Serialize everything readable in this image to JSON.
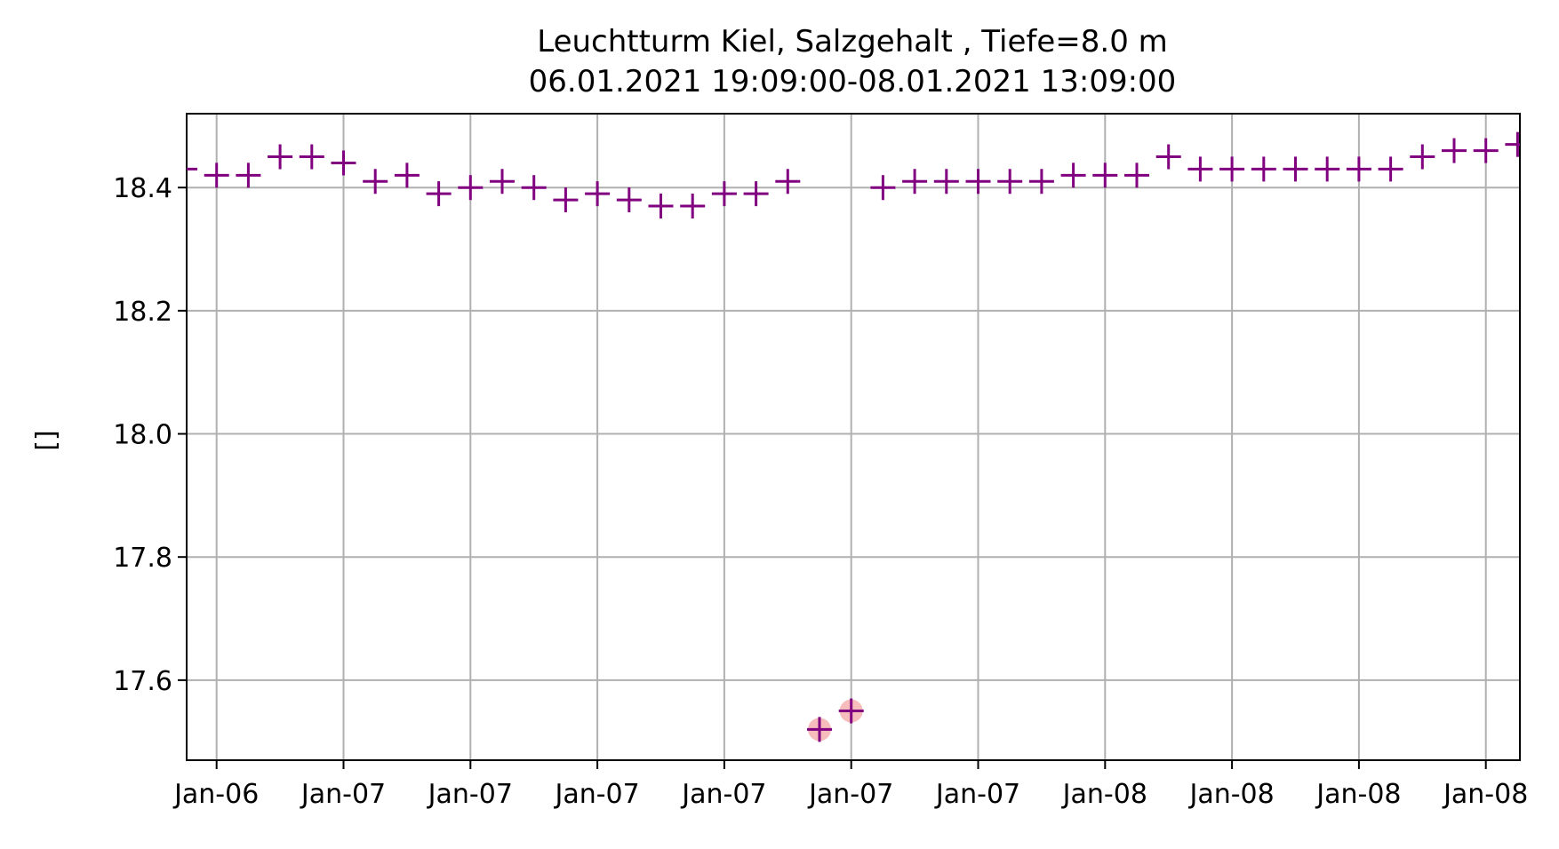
{
  "chart_data": {
    "type": "scatter",
    "title_line1": "Leuchtturm Kiel, Salzgehalt , Tiefe=8.0 m",
    "title_line2": "06.01.2021 19:09:00-08.01.2021 13:09:00",
    "xlabel": "",
    "ylabel": "[]",
    "x_start": "06.01.2021 19:09",
    "x_end": "08.01.2021 13:09",
    "x_interval": "1 hour",
    "ylim": [
      17.47,
      18.52
    ],
    "y_ticks": [
      "17.6",
      "17.8",
      "18.0",
      "18.2",
      "18.4"
    ],
    "x_ticks": [
      "Jan-06",
      "Jan-07",
      "Jan-07",
      "Jan-07",
      "Jan-07",
      "Jan-07",
      "Jan-07",
      "Jan-08",
      "Jan-08",
      "Jan-08",
      "Jan-08"
    ],
    "grid": true,
    "marker": "+",
    "marker_color": "#800080",
    "flag_color": "#f4a6a6",
    "values": [
      18.43,
      18.42,
      18.42,
      18.45,
      18.45,
      18.44,
      18.41,
      18.42,
      18.39,
      18.4,
      18.41,
      18.4,
      18.38,
      18.39,
      18.38,
      18.37,
      18.37,
      18.39,
      18.39,
      18.41,
      17.52,
      17.55,
      18.4,
      18.41,
      18.41,
      18.41,
      18.41,
      18.41,
      18.42,
      18.42,
      18.42,
      18.45,
      18.43,
      18.43,
      18.43,
      18.43,
      18.43,
      18.43,
      18.43,
      18.45,
      18.46,
      18.46,
      18.47
    ],
    "flagged_indices": [
      20,
      21
    ]
  }
}
